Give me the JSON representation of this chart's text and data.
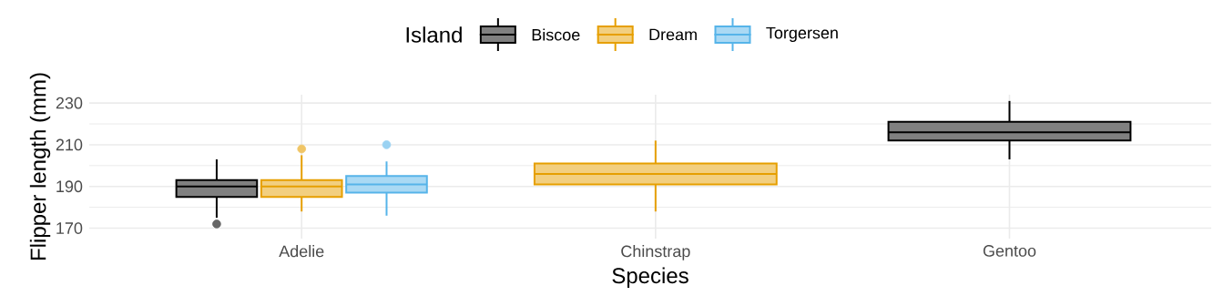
{
  "chart_data": {
    "type": "box",
    "xlabel": "Species",
    "ylabel": "Flipper length (mm)",
    "legend_title": "Island",
    "categories": [
      "Adelie",
      "Chinstrap",
      "Gentoo"
    ],
    "series": [
      {
        "name": "Biscoe",
        "color": "#000000",
        "boxes": [
          {
            "low": 175,
            "q1": 185,
            "median": 190,
            "q3": 193,
            "high": 203,
            "outliers": [
              172
            ]
          },
          null,
          {
            "low": 203,
            "q1": 212,
            "median": 216,
            "q3": 221,
            "high": 231
          }
        ]
      },
      {
        "name": "Dream",
        "color": "#E69F00",
        "boxes": [
          {
            "low": 178,
            "q1": 185,
            "median": 190,
            "q3": 193,
            "high": 205,
            "outliers": [
              208
            ]
          },
          {
            "low": 178,
            "q1": 191,
            "median": 196,
            "q3": 201,
            "high": 212
          },
          null
        ]
      },
      {
        "name": "Torgersen",
        "color": "#56B4E9",
        "boxes": [
          {
            "low": 176,
            "q1": 187,
            "median": 191,
            "q3": 195,
            "high": 202,
            "outliers": [
              210
            ]
          },
          null,
          null
        ]
      }
    ],
    "ylim": [
      165,
      234
    ],
    "yticks": [
      170,
      190,
      210,
      230
    ],
    "grid": true,
    "legend": "top"
  }
}
